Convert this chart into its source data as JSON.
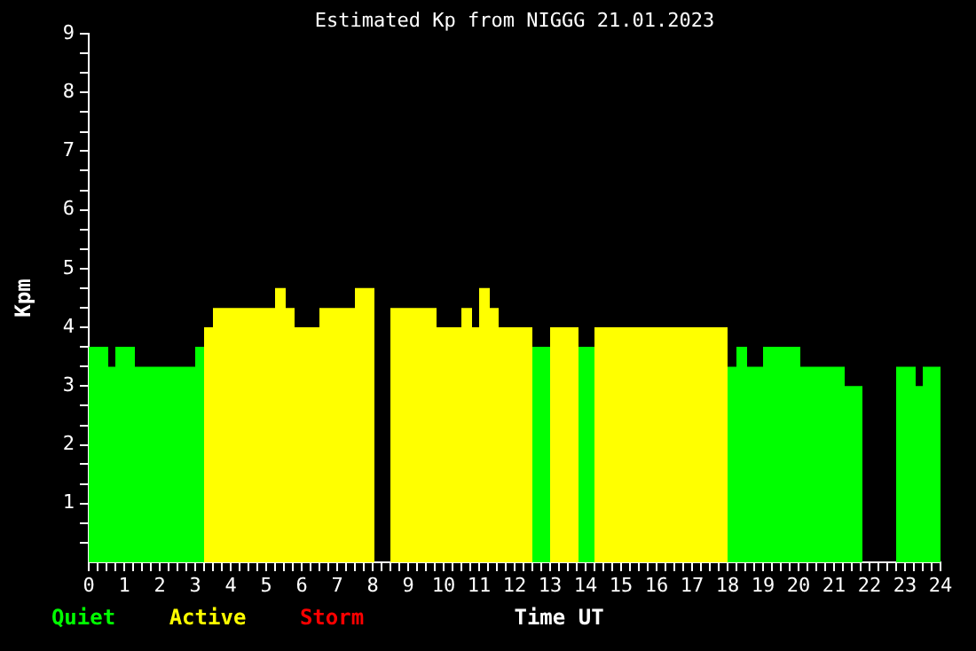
{
  "chart_data": {
    "type": "histogram",
    "title": "Estimated Kp from NIGGG 21.01.2023",
    "xlabel": "Time UT",
    "ylabel": "Kpm",
    "bins": [
      0,
      0.55,
      0.75,
      1.3,
      3.0,
      3.25,
      3.5,
      5.25,
      5.55,
      5.8,
      6.5,
      7.5,
      8.05,
      8.5,
      9.8,
      10.5,
      10.8,
      11.0,
      11.3,
      11.55,
      12.5,
      13.0,
      13.8,
      14.25,
      18.0,
      18.25,
      18.55,
      19.0,
      20.05,
      21.3,
      21.8,
      22.75,
      23.3,
      23.5,
      24
    ],
    "series": [
      {
        "name": "Quiet",
        "color": "#00ff00",
        "values": [
          3.67,
          3.33,
          3.67,
          3.33,
          3.67,
          null,
          null,
          null,
          null,
          null,
          null,
          null,
          null,
          null,
          null,
          null,
          null,
          null,
          null,
          null,
          3.67,
          null,
          3.67,
          null,
          3.33,
          3.67,
          3.33,
          3.67,
          3.33,
          3,
          null,
          3.33,
          3,
          3.33
        ]
      },
      {
        "name": "Active",
        "color": "#ffff00",
        "values": [
          null,
          null,
          null,
          null,
          null,
          4,
          4.33,
          4.67,
          4.33,
          4,
          4.33,
          4.67,
          null,
          4.33,
          4,
          4.33,
          4,
          4.67,
          4.33,
          4,
          null,
          4,
          null,
          4,
          null,
          null,
          null,
          null,
          null,
          null,
          null,
          null,
          null,
          null
        ]
      }
    ],
    "annotations": [
      "Storm"
    ],
    "xlim": [
      0,
      24
    ],
    "ylim": [
      0,
      9
    ],
    "xticks": [
      0,
      {
        "value": 0.25,
        "label": null
      },
      {
        "value": 0.5,
        "label": null
      },
      {
        "value": 0.75,
        "label": null
      },
      1,
      {
        "value": 1.25,
        "label": null
      },
      {
        "value": 1.5,
        "label": null
      },
      {
        "value": 1.75,
        "label": null
      },
      2,
      {
        "value": 2.25,
        "label": null
      },
      {
        "value": 2.5,
        "label": null
      },
      {
        "value": 2.75,
        "label": null
      },
      3,
      {
        "value": 3.25,
        "label": null
      },
      {
        "value": 3.5,
        "label": null
      },
      {
        "value": 3.75,
        "label": null
      },
      4,
      {
        "value": 4.25,
        "label": null
      },
      {
        "value": 4.5,
        "label": null
      },
      {
        "value": 4.75,
        "label": null
      },
      5,
      {
        "value": 5.25,
        "label": null
      },
      {
        "value": 5.5,
        "label": null
      },
      {
        "value": 5.75,
        "label": null
      },
      6,
      {
        "value": 6.25,
        "label": null
      },
      {
        "value": 6.5,
        "label": null
      },
      {
        "value": 6.75,
        "label": null
      },
      7,
      {
        "value": 7.25,
        "label": null
      },
      {
        "value": 7.5,
        "label": null
      },
      {
        "value": 7.75,
        "label": null
      },
      8,
      {
        "value": 8.25,
        "label": null
      },
      {
        "value": 8.5,
        "label": null
      },
      {
        "value": 8.75,
        "label": null
      },
      9,
      {
        "value": 9.25,
        "label": null
      },
      {
        "value": 9.5,
        "label": null
      },
      {
        "value": 9.75,
        "label": null
      },
      10,
      {
        "value": 10.25,
        "label": null
      },
      {
        "value": 10.5,
        "label": null
      },
      {
        "value": 10.75,
        "label": null
      },
      11,
      {
        "value": 11.25,
        "label": null
      },
      {
        "value": 11.5,
        "label": null
      },
      {
        "value": 11.75,
        "label": null
      },
      12,
      {
        "value": 12.25,
        "label": null
      },
      {
        "value": 12.5,
        "label": null
      },
      {
        "value": 12.75,
        "label": null
      },
      13,
      {
        "value": 13.25,
        "label": null
      },
      {
        "value": 13.5,
        "label": null
      },
      {
        "value": 13.75,
        "label": null
      },
      14,
      {
        "value": 14.25,
        "label": null
      },
      {
        "value": 14.5,
        "label": null
      },
      {
        "value": 14.75,
        "label": null
      },
      15,
      {
        "value": 15.25,
        "label": null
      },
      {
        "value": 15.5,
        "label": null
      },
      {
        "value": 15.75,
        "label": null
      },
      16,
      {
        "value": 16.25,
        "label": null
      },
      {
        "value": 16.5,
        "label": null
      },
      {
        "value": 16.75,
        "label": null
      },
      17,
      {
        "value": 17.25,
        "label": null
      },
      {
        "value": 17.5,
        "label": null
      },
      {
        "value": 17.75,
        "label": null
      },
      18,
      {
        "value": 18.25,
        "label": null
      },
      {
        "value": 18.5,
        "label": null
      },
      {
        "value": 18.75,
        "label": null
      },
      19,
      {
        "value": 19.25,
        "label": null
      },
      {
        "value": 19.5,
        "label": null
      },
      {
        "value": 19.75,
        "label": null
      },
      20,
      {
        "value": 20.25,
        "label": null
      },
      {
        "value": 20.5,
        "label": null
      },
      {
        "value": 20.75,
        "label": null
      },
      21,
      {
        "value": 21.25,
        "label": null
      },
      {
        "value": 21.5,
        "label": null
      },
      {
        "value": 21.75,
        "label": null
      },
      22,
      {
        "value": 22.25,
        "label": null
      },
      {
        "value": 22.5,
        "label": null
      },
      {
        "value": 22.75,
        "label": null
      },
      23,
      {
        "value": 23.25,
        "label": null
      },
      {
        "value": 23.5,
        "label": null
      },
      {
        "value": 23.75,
        "label": null
      },
      24
    ],
    "yticks": [
      {
        "value": 0.33,
        "label": null
      },
      {
        "value": 0.67,
        "label": null
      },
      1,
      {
        "value": 1.33,
        "label": null
      },
      {
        "value": 1.67,
        "label": null
      },
      2,
      {
        "value": 2.33,
        "label": null
      },
      {
        "value": 2.67,
        "label": null
      },
      3,
      {
        "value": 3.33,
        "label": null
      },
      {
        "value": 3.67,
        "label": null
      },
      4,
      {
        "value": 4.33,
        "label": null
      },
      {
        "value": 4.67,
        "label": null
      },
      5,
      {
        "value": 5.33,
        "label": null
      },
      {
        "value": 5.67,
        "label": null
      },
      6,
      {
        "value": 6.33,
        "label": null
      },
      {
        "value": 6.67,
        "label": null
      },
      7,
      {
        "value": 7.33,
        "label": null
      },
      {
        "value": 7.67,
        "label": null
      },
      8,
      {
        "value": 8.33,
        "label": null
      },
      {
        "value": 8.67,
        "label": null
      },
      9
    ],
    "grid": false,
    "legend": "bottom left"
  }
}
